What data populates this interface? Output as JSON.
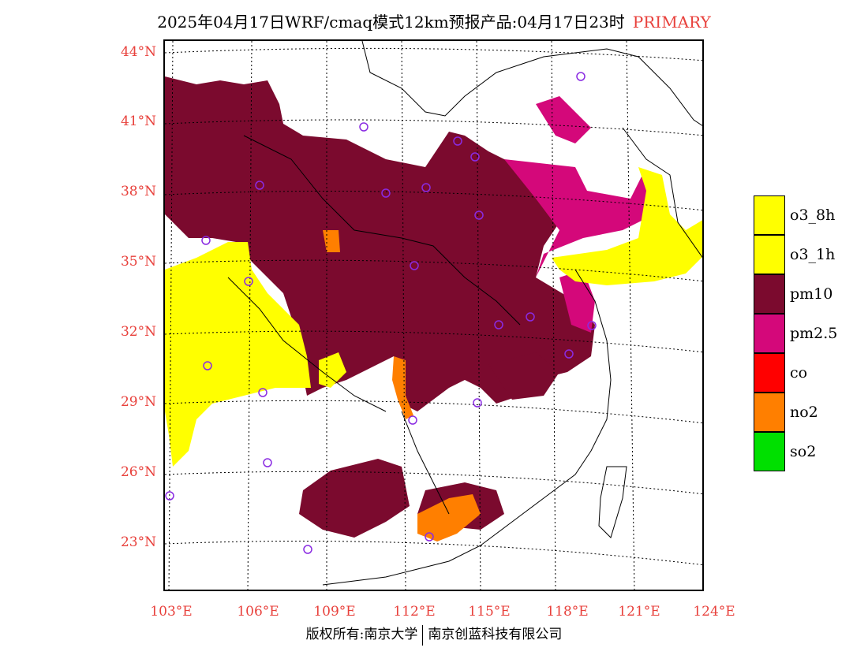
{
  "title": {
    "main": "2025年04月17日WRF/cmaq模式12km预报产品:04月17日23时",
    "tag": "PRIMARY"
  },
  "map": {
    "lat_labels": [
      "44°N",
      "41°N",
      "38°N",
      "35°N",
      "32°N",
      "29°N",
      "26°N",
      "23°N"
    ],
    "lon_labels": [
      "103°E",
      "106°E",
      "109°E",
      "112°E",
      "115°E",
      "118°E",
      "121°E",
      "124°E"
    ]
  },
  "legend": [
    {
      "label": "o3_8h",
      "color": "#ffff00"
    },
    {
      "label": "o3_1h",
      "color": "#ffff00"
    },
    {
      "label": "pm10",
      "color": "#7b0a2e"
    },
    {
      "label": "pm2.5",
      "color": "#d4087a"
    },
    {
      "label": "co",
      "color": "#ff0000"
    },
    {
      "label": "no2",
      "color": "#ff7f00"
    },
    {
      "label": "so2",
      "color": "#00e000"
    }
  ],
  "colors": {
    "pm10": "#7b0a2e",
    "pm25": "#d4087a",
    "o3": "#ffff00",
    "no2": "#ff7f00",
    "station": "#8a2be2",
    "axis_text": "#e8413c"
  },
  "copyright": {
    "left": "版权所有:南京大学",
    "right": "南京创蓝科技有限公司"
  }
}
